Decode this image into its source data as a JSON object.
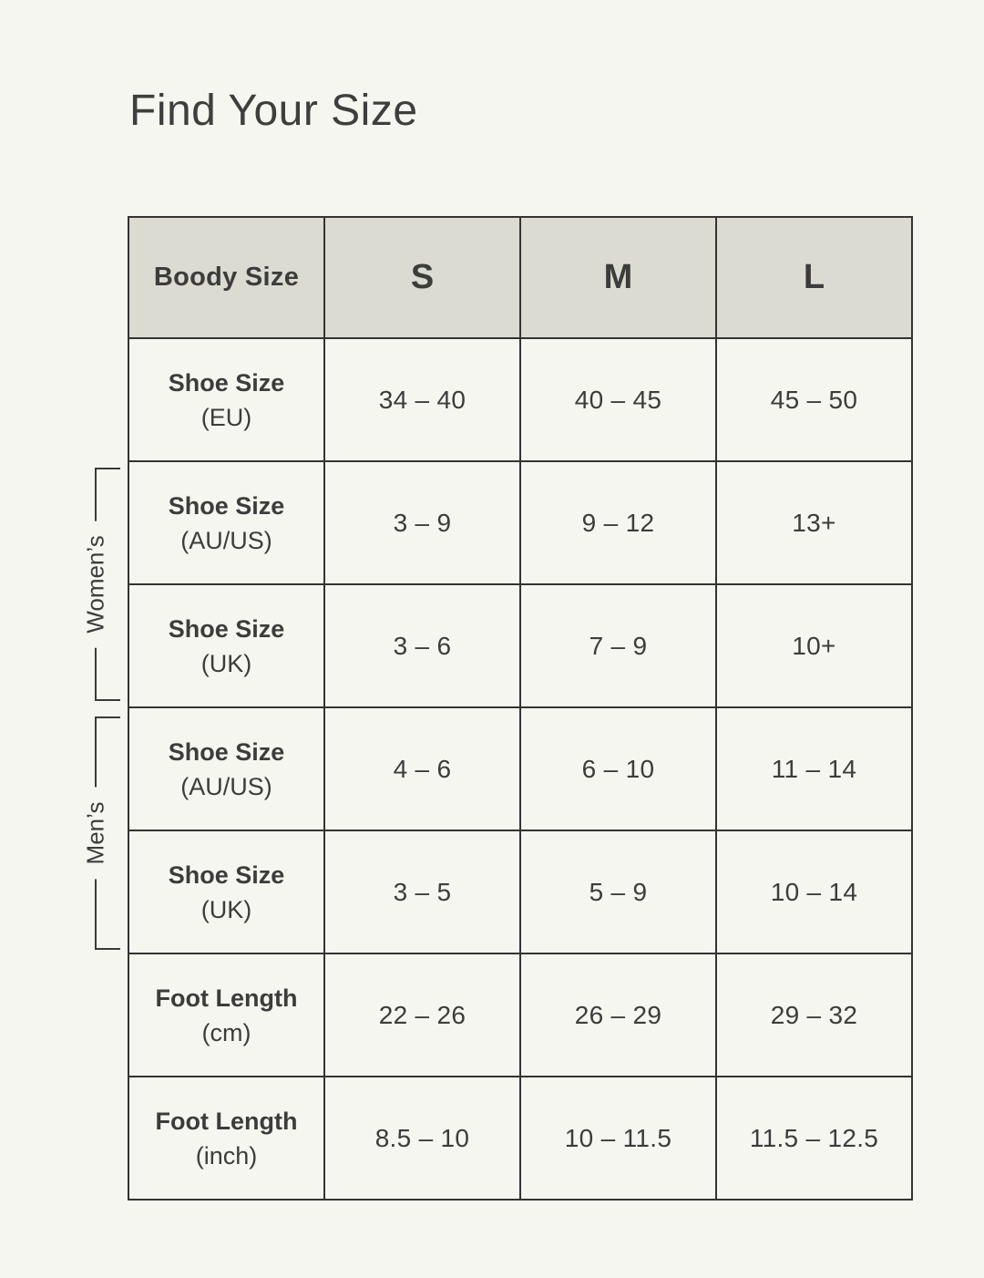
{
  "page": {
    "title": "Find Your Size"
  },
  "colors": {
    "background": "#F6F6F0",
    "header_bg": "#DBDBD2",
    "border": "#333333",
    "text": "#3C3C3C"
  },
  "side_labels": {
    "womens": "Women’s",
    "mens": "Men’s"
  },
  "table": {
    "header": {
      "label": "Boody Size",
      "sizes": [
        "S",
        "M",
        "L"
      ]
    },
    "rows": [
      {
        "label": "Shoe Size",
        "sublabel": "(EU)",
        "values": [
          "34 – 40",
          "40 – 45",
          "45 – 50"
        ]
      },
      {
        "label": "Shoe Size",
        "sublabel": "(AU/US)",
        "values": [
          "3 – 9",
          "9 – 12",
          "13+"
        ]
      },
      {
        "label": "Shoe Size",
        "sublabel": "(UK)",
        "values": [
          "3 – 6",
          "7 – 9",
          "10+"
        ]
      },
      {
        "label": "Shoe Size",
        "sublabel": "(AU/US)",
        "values": [
          "4 – 6",
          "6 – 10",
          "11 – 14"
        ]
      },
      {
        "label": "Shoe Size",
        "sublabel": "(UK)",
        "values": [
          "3 – 5",
          "5 – 9",
          "10 – 14"
        ]
      },
      {
        "label": "Foot Length",
        "sublabel": "(cm)",
        "values": [
          "22 – 26",
          "26 – 29",
          "29 – 32"
        ]
      },
      {
        "label": "Foot Length",
        "sublabel": "(inch)",
        "values": [
          "8.5 – 10",
          "10 – 11.5",
          "11.5 – 12.5"
        ]
      }
    ]
  },
  "chart_data": {
    "type": "table",
    "title": "Find Your Size",
    "columns": [
      "Boody Size",
      "S",
      "M",
      "L"
    ],
    "rows": [
      {
        "label": "Shoe Size (EU)",
        "group": "",
        "S": "34 – 40",
        "M": "40 – 45",
        "L": "45 – 50"
      },
      {
        "label": "Shoe Size (AU/US)",
        "group": "Women’s",
        "S": "3 – 9",
        "M": "9 – 12",
        "L": "13+"
      },
      {
        "label": "Shoe Size (UK)",
        "group": "Women’s",
        "S": "3 – 6",
        "M": "7 – 9",
        "L": "10+"
      },
      {
        "label": "Shoe Size (AU/US)",
        "group": "Men’s",
        "S": "4 – 6",
        "M": "6 – 10",
        "L": "11 – 14"
      },
      {
        "label": "Shoe Size (UK)",
        "group": "Men’s",
        "S": "3 – 5",
        "M": "5 – 9",
        "L": "10 – 14"
      },
      {
        "label": "Foot Length (cm)",
        "group": "",
        "S": "22 – 26",
        "M": "26 – 29",
        "L": "29 – 32"
      },
      {
        "label": "Foot Length (inch)",
        "group": "",
        "S": "8.5 – 10",
        "M": "10 – 11.5",
        "L": "11.5 – 12.5"
      }
    ]
  }
}
